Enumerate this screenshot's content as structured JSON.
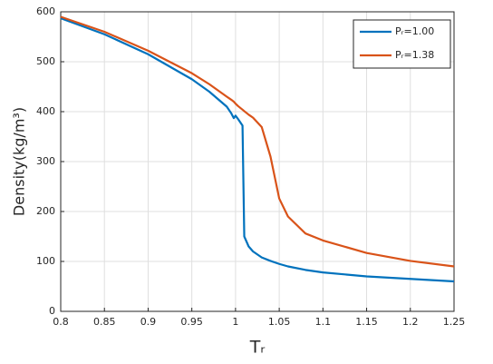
{
  "chart_data": {
    "type": "line",
    "xlabel": "Tᵣ",
    "ylabel": "Density(kg/m³)",
    "x": [
      0.8,
      0.85,
      0.9,
      0.95,
      0.97,
      0.99,
      0.995,
      0.998,
      1.0,
      1.003,
      1.008,
      1.01,
      1.015,
      1.02,
      1.03,
      1.04,
      1.05,
      1.06,
      1.08,
      1.1,
      1.15,
      1.2,
      1.25
    ],
    "series": [
      {
        "name": "Pᵣ=1.00",
        "color": "#0072bd",
        "values": [
          587,
          555,
          515,
          465,
          440,
          410,
          397,
          387,
          392,
          385,
          372,
          150,
          130,
          120,
          108,
          101,
          95,
          90,
          83,
          78,
          70,
          65,
          60
        ]
      },
      {
        "name": "Pᵣ=1.38",
        "color": "#d95319",
        "values": [
          590,
          560,
          522,
          477,
          455,
          430,
          424,
          420,
          416,
          411,
          404,
          401,
          394,
          388,
          369,
          310,
          226,
          190,
          156,
          142,
          117,
          101,
          90
        ]
      }
    ],
    "xlim": [
      0.8,
      1.25
    ],
    "xticks": [
      0.8,
      0.85,
      0.9,
      0.95,
      1,
      1.05,
      1.1,
      1.15,
      1.2,
      1.25
    ],
    "ylim": [
      0,
      600
    ],
    "yticks": [
      0,
      100,
      200,
      300,
      400,
      500,
      600
    ],
    "grid": true,
    "legend": "northeast"
  }
}
